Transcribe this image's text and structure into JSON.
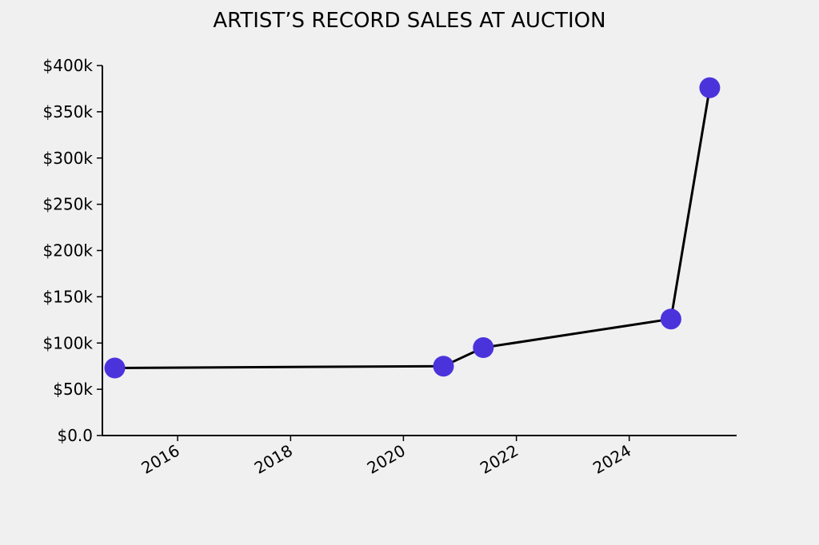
{
  "chart_data": {
    "type": "line",
    "title": "ARTIST’S RECORD SALES AT AUCTION",
    "xlabel": "",
    "ylabel": "",
    "x_ticks": [
      "2016",
      "2018",
      "2020",
      "2022",
      "2024"
    ],
    "y_ticks": [
      "$0.0",
      "$50k",
      "$100k",
      "$150k",
      "$200k",
      "$250k",
      "$300k",
      "$350k",
      "$400k"
    ],
    "xlim": [
      "2014-09-01",
      "2025-11-26"
    ],
    "ylim": [
      0,
      400000
    ],
    "series": [
      {
        "points": [
          {
            "date": "2014-11-20",
            "value": 73000
          },
          {
            "date": "2020-09-16",
            "value": 75000
          },
          {
            "date": "2021-06-01",
            "value": 95000
          },
          {
            "date": "2024-09-27",
            "value": 126000
          },
          {
            "date": "2025-06-05",
            "value": 376000
          }
        ]
      }
    ],
    "colors": {
      "line": "#000000",
      "marker": "#4b33dc",
      "background": "#f0f0f0"
    },
    "grid": false
  }
}
